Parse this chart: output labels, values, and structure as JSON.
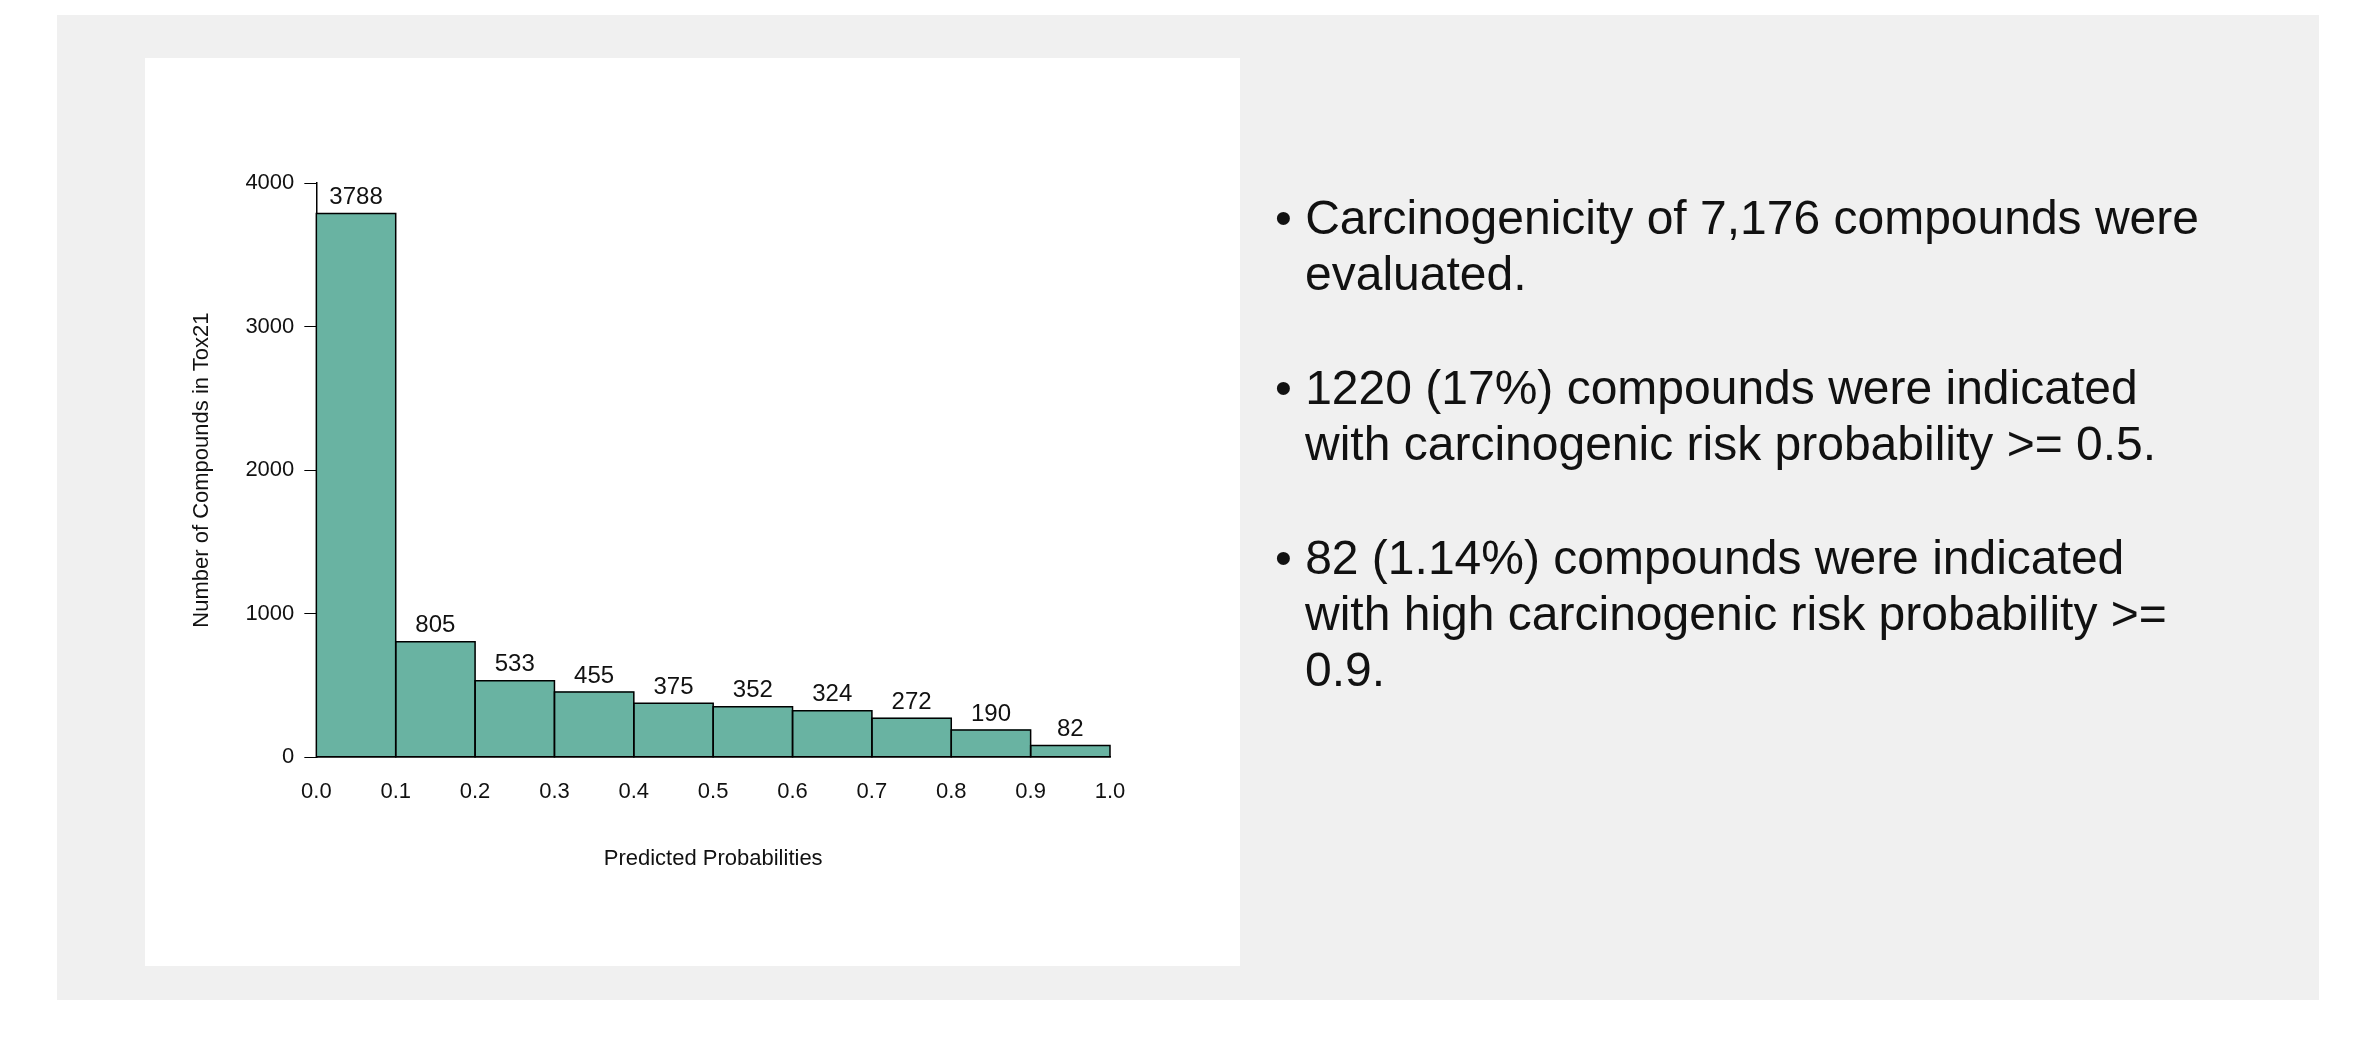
{
  "chart_data": {
    "type": "histogram",
    "xlabel": "Predicted Probabilities",
    "ylabel": "Number of Compounds in Tox21",
    "bins": [
      0,
      0.1,
      0.2,
      0.3,
      0.4,
      0.5,
      0.6,
      0.7,
      0.8,
      0.9,
      1.0
    ],
    "values": [
      3788,
      805,
      533,
      455,
      375,
      352,
      324,
      272,
      190,
      82
    ],
    "color": "#69b3a2",
    "data_labels": true,
    "grid": false,
    "legend": false,
    "xlim": [
      0,
      1
    ],
    "xticks": [
      {
        "value": 0,
        "label": "0.0"
      },
      {
        "value": 0.1,
        "label": "0.1"
      },
      {
        "value": 0.2,
        "label": "0.2"
      },
      {
        "value": 0.3,
        "label": "0.3"
      },
      {
        "value": 0.4,
        "label": "0.4"
      },
      {
        "value": 0.5,
        "label": "0.5"
      },
      {
        "value": 0.6,
        "label": "0.6"
      },
      {
        "value": 0.7,
        "label": "0.7"
      },
      {
        "value": 0.8,
        "label": "0.8"
      },
      {
        "value": 0.9,
        "label": "0.9"
      },
      {
        "value": 1,
        "label": "1.0"
      }
    ],
    "ylim": [
      0,
      4000
    ],
    "yticks": [
      0,
      1000,
      2000,
      3000,
      4000
    ],
    "annotations": [
      "• Carcinogenicity of 7,176 compounds were evaluated.",
      "• 1220 (17%) compounds were indicated with carcinogenic risk probability >= 0.5.",
      "• 82 (1.14%) compounds were indicated with high carcinogenic risk probability >= 0.9."
    ]
  }
}
